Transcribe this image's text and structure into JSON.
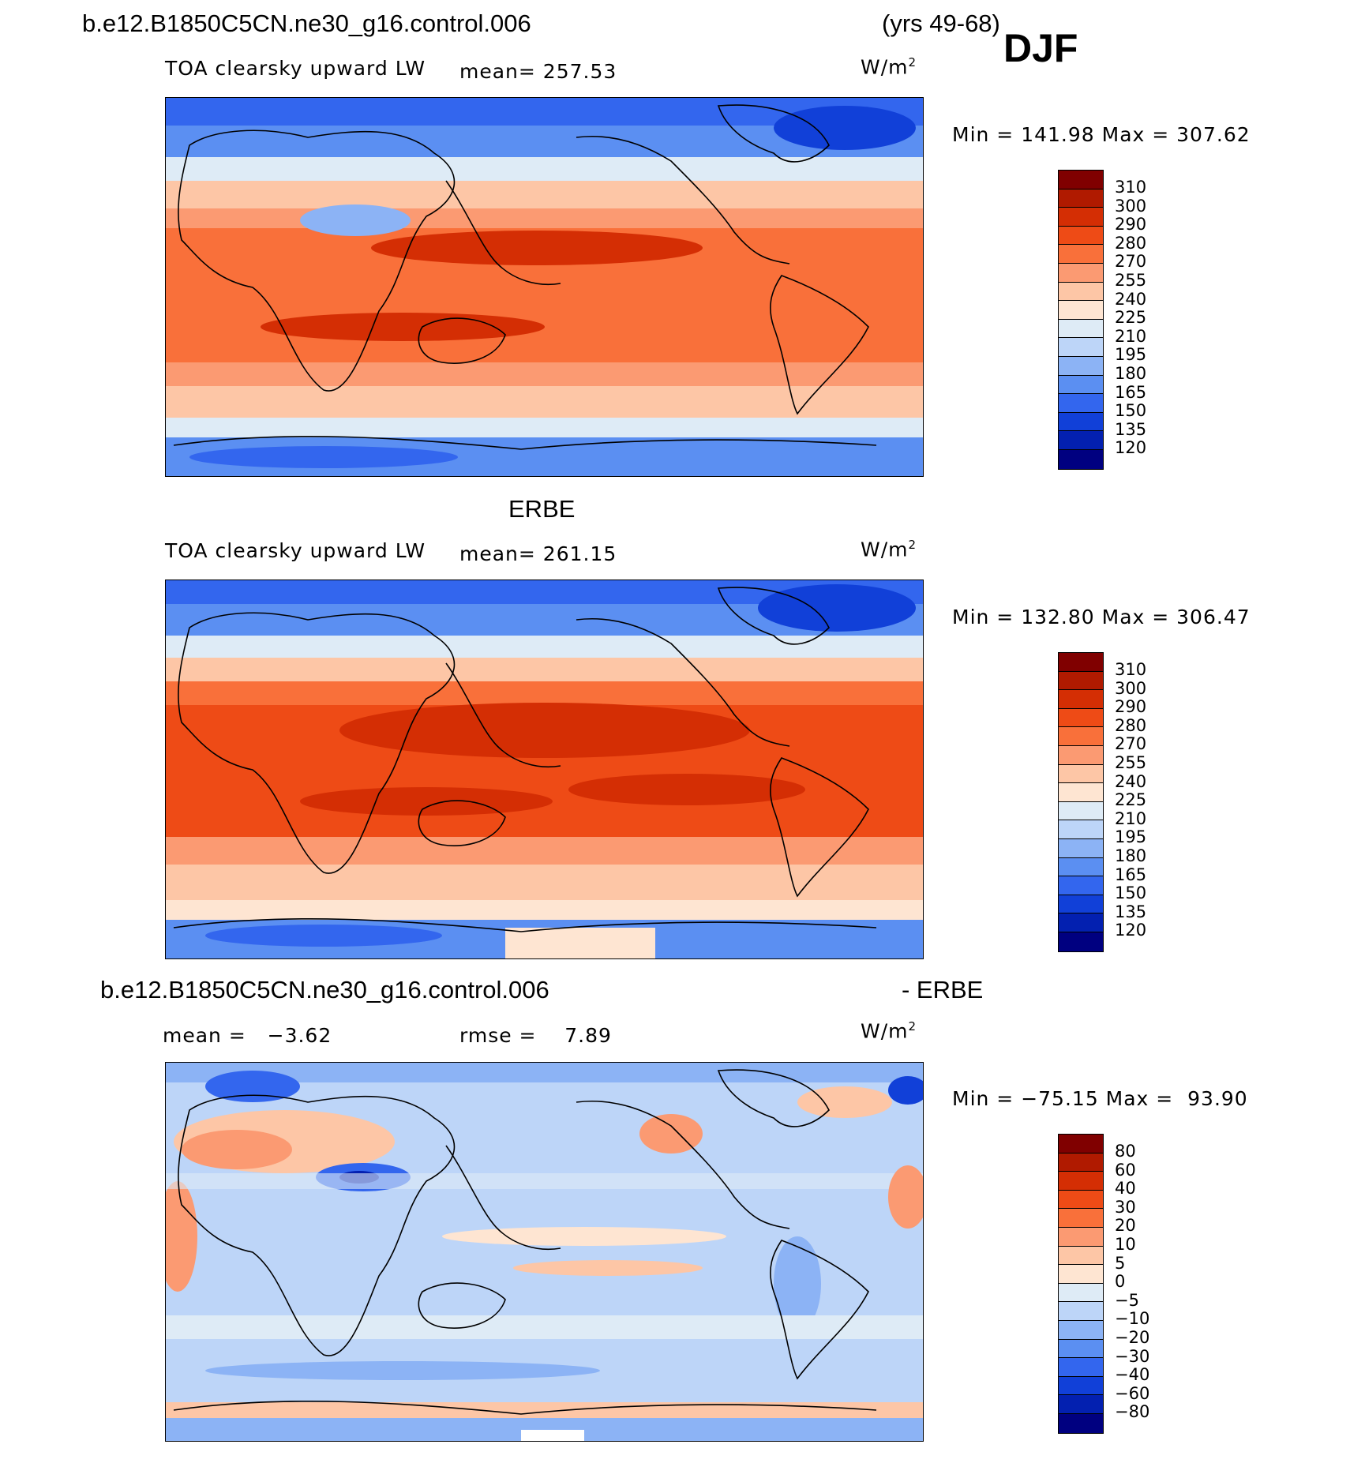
{
  "header": {
    "case": "b.e12.B1850C5CN.ne30_g16.control.006",
    "years": "(yrs 49-68)",
    "season": "DJF"
  },
  "panels": [
    {
      "id": "model",
      "variable": "TOA clearsky upward LW",
      "mean": "mean= 257.53",
      "units": "W/m",
      "units_sup": "2",
      "minmax": "Min = 141.98 Max = 307.62"
    },
    {
      "id": "obs",
      "title": "ERBE",
      "variable": "TOA clearsky upward LW",
      "mean": "mean= 261.15",
      "units": "W/m",
      "units_sup": "2",
      "minmax": "Min = 132.80 Max = 306.47"
    },
    {
      "id": "diff",
      "title_left": "b.e12.B1850C5CN.ne30_g16.control.006",
      "title_right": "- ERBE",
      "mean": "mean =   −3.62",
      "rmse": "rmse =    7.89",
      "units": "W/m",
      "units_sup": "2",
      "minmax": "Min = −75.15 Max =  93.90"
    }
  ],
  "colorbars": {
    "field": {
      "labels": [
        "310",
        "300",
        "290",
        "280",
        "270",
        "255",
        "240",
        "225",
        "210",
        "195",
        "180",
        "165",
        "150",
        "135",
        "120"
      ],
      "colors": [
        "#800000",
        "#b01a00",
        "#d42e04",
        "#ee4b16",
        "#f9703a",
        "#fb9a72",
        "#fdc6a6",
        "#fee5d2",
        "#deebf6",
        "#bdd5f8",
        "#8cb3f5",
        "#5b8ff2",
        "#3366ee",
        "#1140d8",
        "#0320b0",
        "#000080"
      ]
    },
    "diff": {
      "labels": [
        "80",
        "60",
        "40",
        "30",
        "20",
        "10",
        "5",
        "0",
        "−5",
        "−10",
        "−20",
        "−30",
        "−40",
        "−60",
        "−80"
      ],
      "colors": [
        "#800000",
        "#b01a00",
        "#d42e04",
        "#ee4b16",
        "#f9703a",
        "#fb9a72",
        "#fdc6a6",
        "#fee5d2",
        "#deebf6",
        "#bdd5f8",
        "#8cb3f5",
        "#5b8ff2",
        "#3366ee",
        "#1140d8",
        "#0320b0",
        "#000080"
      ]
    }
  }
}
